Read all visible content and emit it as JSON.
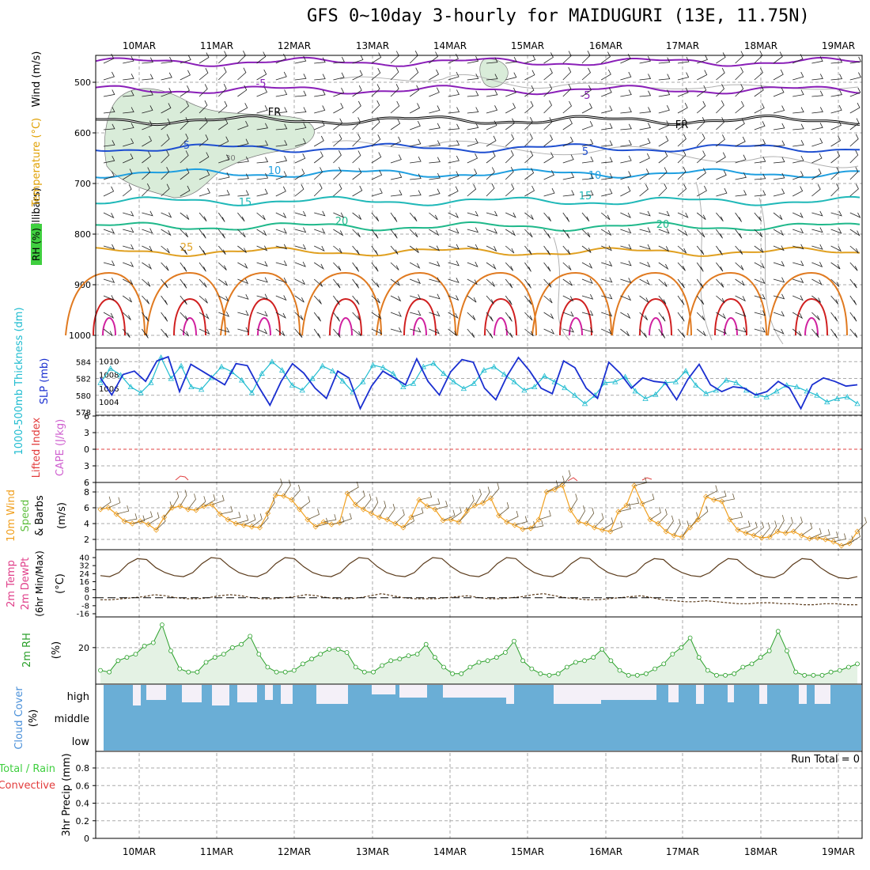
{
  "title": "GFS 0~10day 3-hourly for MAIDUGURI (13E, 11.75N)",
  "colors": {
    "rh_green": "#3fcf3f",
    "temp_red": "#e23b3b",
    "temp_orange": "#e0a000",
    "wind_dark": "#000000",
    "thickness_cyan": "#20bcd0",
    "slp_blue": "#1a2fd0",
    "lifted_red": "#e23b3b",
    "cape_magenta": "#cf5fcf",
    "wind10_orange": "#f0a020",
    "speed_green": "#5fbf3f",
    "rh2m_green": "#2aa02a",
    "cloud_blue": "#4a90d9",
    "cloud_fill": "#6aaed6",
    "precip_green": "#3fcf3f",
    "precip_red": "#e23b3b"
  },
  "chart_data": [
    {
      "type": "heatmap",
      "panel": "upper_air",
      "ylabel_parts": [
        "RH (%)",
        "Temperature (°C)",
        "Wind (m/s)"
      ],
      "ylabel_units": "(millibars)",
      "yticks": [
        500,
        600,
        700,
        800,
        900,
        1000
      ],
      "dates_top": [
        "10MAR",
        "11MAR",
        "12MAR",
        "13MAR",
        "14MAR",
        "15MAR",
        "16MAR",
        "17MAR",
        "18MAR",
        "19MAR"
      ],
      "isotherm_labels": [
        {
          "text": "-5",
          "level": 510,
          "color": "#8a1fb8"
        },
        {
          "text": "-5",
          "level": 525,
          "color": "#8a1fb8"
        },
        {
          "text": "FR",
          "level": 568,
          "color": "#000000"
        },
        {
          "text": "FR",
          "level": 590,
          "color": "#000000"
        },
        {
          "text": "5",
          "level": 628,
          "color": "#1f4fd0"
        },
        {
          "text": "5",
          "level": 633,
          "color": "#1f4fd0"
        },
        {
          "text": "10",
          "level": 678,
          "color": "#1f9fe0"
        },
        {
          "text": "10",
          "level": 682,
          "color": "#1f9fe0"
        },
        {
          "text": "15",
          "level": 740,
          "color": "#1fb8b8"
        },
        {
          "text": "15",
          "level": 730,
          "color": "#1fb8b8"
        },
        {
          "text": "20",
          "level": 790,
          "color": "#1fb88a"
        },
        {
          "text": "20",
          "level": 785,
          "color": "#1fb88a"
        },
        {
          "text": "25",
          "level": 830,
          "color": "#e0a020"
        }
      ],
      "rh_label": "30"
    },
    {
      "type": "line",
      "panel": "thickness_slp",
      "ylabel_left": "1000-500mb Thickness (dm)",
      "ylabel_right": "SLP (mb)",
      "yticks_left": [
        578,
        580,
        582,
        584
      ],
      "yticks_right": [
        1004,
        1006,
        1008,
        1010
      ],
      "series": [
        {
          "name": "Thickness",
          "color": "#20bcd0",
          "values": [
            581.5,
            583.2,
            582.4,
            581.0,
            580.3,
            581.5,
            584.5,
            582.0,
            583.5,
            581.0,
            580.7,
            582.1,
            583.4,
            582.8,
            581.8,
            580.3,
            582.6,
            584.0,
            583.0,
            581.2,
            580.6,
            582.0,
            583.5,
            582.9,
            581.7,
            580.4,
            581.6,
            583.6,
            583.3,
            582.6,
            581.0,
            581.4,
            583.4,
            583.8,
            582.6,
            581.6,
            580.8,
            581.4,
            583.0,
            583.4,
            582.5,
            581.6,
            580.6,
            581.0,
            582.3,
            581.6,
            580.9,
            580.0,
            579.0,
            580.0,
            581.5,
            581.6,
            582.2,
            580.5,
            579.6,
            580.1,
            581.5,
            581.6,
            582.9,
            581.2,
            580.2,
            580.6,
            581.8,
            581.5,
            580.6,
            580.0,
            579.8,
            580.5,
            581.2,
            581.0,
            580.5,
            580.0,
            579.2,
            579.6,
            579.8,
            579.0
          ]
        },
        {
          "name": "SLP",
          "color": "#1a2fd0",
          "values": [
            1007.5,
            1005.0,
            1008.0,
            1008.5,
            1007.0,
            1010.0,
            1010.6,
            1005.5,
            1009.5,
            1008.5,
            1007.5,
            1006.5,
            1009.6,
            1009.3,
            1006.2,
            1003.5,
            1007.0,
            1009.6,
            1008.2,
            1006.0,
            1004.5,
            1008.5,
            1007.5,
            1003.0,
            1006.3,
            1008.5,
            1007.5,
            1006.5,
            1010.3,
            1007.0,
            1005.0,
            1008.4,
            1010.2,
            1009.8,
            1006.0,
            1004.3,
            1007.8,
            1010.5,
            1008.5,
            1006.0,
            1005.2,
            1010.0,
            1009.0,
            1006.0,
            1004.5,
            1009.8,
            1008.2,
            1006.0,
            1007.5,
            1007.0,
            1006.8,
            1004.3,
            1007.3,
            1009.5,
            1006.5,
            1005.5,
            1006.2,
            1006.0,
            1005.0,
            1005.5,
            1007.0,
            1006.0,
            1003.0,
            1006.5,
            1007.5,
            1007.0,
            1006.3,
            1006.5
          ]
        }
      ]
    },
    {
      "type": "line",
      "panel": "lifted_cape",
      "ylabel_left": "Lifted Index",
      "ylabel_right": "CAPE (J/kg)",
      "yticks": [
        -6,
        -3,
        0,
        3,
        6
      ],
      "ytick_labels": [
        "6",
        "3",
        "0",
        "3",
        "6"
      ],
      "series": [
        {
          "name": "Lifted Index",
          "color": "#e23b3b",
          "values": []
        }
      ]
    },
    {
      "type": "line",
      "panel": "wind10m",
      "ylabel_parts": [
        "10m Wind",
        "Speed",
        "& Barbs"
      ],
      "ylabel_units": "(m/s)",
      "yticks": [
        2,
        4,
        6,
        8
      ],
      "series": [
        {
          "name": "Speed",
          "color": "#f0a020",
          "values": [
            5.8,
            6.0,
            5.2,
            4.3,
            4.0,
            4.3,
            3.9,
            3.2,
            4.8,
            6.0,
            6.2,
            5.8,
            5.7,
            6.2,
            6.4,
            5.2,
            4.5,
            4.0,
            3.8,
            3.6,
            3.5,
            5.3,
            7.6,
            7.5,
            7.0,
            5.8,
            4.5,
            3.6,
            4.2,
            3.9,
            4.1,
            7.8,
            6.4,
            5.8,
            5.3,
            4.8,
            4.5,
            4.0,
            3.5,
            4.8,
            7.0,
            6.2,
            5.8,
            4.4,
            4.5,
            4.2,
            5.6,
            6.3,
            6.6,
            7.2,
            5.0,
            4.2,
            3.8,
            3.3,
            3.4,
            4.5,
            8.0,
            8.3,
            8.8,
            5.7,
            4.2,
            4.0,
            3.5,
            3.2,
            3.0,
            5.5,
            6.3,
            8.8,
            6.5,
            4.5,
            4.0,
            3.0,
            2.5,
            2.3,
            3.5,
            4.5,
            7.4,
            7.0,
            6.8,
            4.5,
            3.2,
            2.8,
            2.5,
            2.2,
            2.3,
            3.0,
            2.8,
            3.0,
            2.5,
            2.1,
            2.2,
            2.0,
            1.7,
            1.2,
            1.5,
            3.0
          ]
        }
      ]
    },
    {
      "type": "area",
      "panel": "temp2m",
      "ylabel_parts": [
        "2m Temp",
        "2m DewPt",
        "(6hr Min/Max)"
      ],
      "ylabel_units": "(°C)",
      "yticks": [
        -16,
        -8,
        0,
        8,
        16,
        24,
        32,
        40
      ],
      "series": [
        {
          "name": "2m Temp",
          "color": "#5a3a1a",
          "values": [
            22,
            21,
            25,
            34,
            39,
            38,
            30,
            25,
            22,
            21,
            25,
            34,
            40,
            39,
            31,
            25,
            22,
            21,
            25,
            34,
            40,
            39,
            31,
            25,
            22,
            21,
            25,
            34,
            40,
            39,
            31,
            25,
            22,
            21,
            25,
            34,
            40,
            39,
            31,
            25,
            22,
            21,
            25,
            34,
            40,
            39,
            31,
            25,
            22,
            21,
            25,
            34,
            40,
            39,
            31,
            25,
            22,
            21,
            25,
            34,
            39,
            38,
            30,
            25,
            22,
            21,
            25,
            33,
            39,
            38,
            30,
            24,
            21,
            20,
            24,
            33,
            39,
            38,
            30,
            24,
            20,
            19,
            21
          ]
        },
        {
          "name": "2m DewPt",
          "color": "#5a3a1a",
          "values": [
            -2,
            -2,
            -1,
            0,
            1,
            3,
            2,
            0,
            -1,
            -1,
            0,
            2,
            3,
            2,
            0,
            -1,
            -1,
            0,
            1,
            3,
            2,
            0,
            -1,
            -1,
            0,
            2,
            4,
            2,
            0,
            -1,
            -1,
            -1,
            0,
            1,
            2,
            0,
            -1,
            -1,
            0,
            1,
            3,
            4,
            2,
            0,
            -1,
            -2,
            -2,
            -1,
            0,
            1,
            2,
            0,
            -2,
            -3,
            -4,
            -4,
            -3,
            -4,
            -5,
            -6,
            -6,
            -5,
            -5,
            -6,
            -6,
            -7,
            -7,
            -6,
            -6,
            -7,
            -7
          ]
        }
      ]
    },
    {
      "type": "area",
      "panel": "rh2m",
      "ylabel": "2m RH",
      "ylabel_units": "(%)",
      "yticks": [
        20
      ],
      "series": [
        {
          "name": "2m RH",
          "color": "#2aa02a",
          "values": [
            6,
            5,
            12,
            14,
            16,
            21,
            23,
            34,
            18,
            7,
            5,
            5,
            11,
            14,
            16,
            20,
            22,
            27,
            16,
            8,
            5,
            5,
            6,
            10,
            13,
            16,
            19,
            19,
            17,
            8,
            5,
            5,
            9,
            12,
            13,
            15,
            16,
            22,
            14,
            8,
            4,
            4,
            8,
            11,
            12,
            14,
            17,
            24,
            12,
            7,
            4,
            3,
            4,
            8,
            11,
            12,
            14,
            19,
            12,
            6,
            3,
            3,
            4,
            7,
            10,
            16,
            20,
            26,
            14,
            6,
            3,
            3,
            4,
            8,
            10,
            14,
            18,
            30,
            18,
            5,
            3,
            3,
            3,
            5,
            6,
            8,
            10
          ]
        }
      ]
    },
    {
      "type": "bar",
      "panel": "cloud",
      "ylabel": "Cloud Cover",
      "ylabel_units": "(%)",
      "yticks_text": [
        "high",
        "middle",
        "low"
      ]
    },
    {
      "type": "bar",
      "panel": "precip",
      "ylabel_parts": [
        "Total / Rain",
        "Convective"
      ],
      "ylabel": "3hr Precip (mm)",
      "yticks": [
        0,
        0.2,
        0.4,
        0.6,
        0.8
      ],
      "run_total": "Run Total = 0",
      "dates_bottom": [
        "10MAR",
        "11MAR",
        "12MAR",
        "13MAR",
        "14MAR",
        "15MAR",
        "16MAR",
        "17MAR",
        "18MAR",
        "19MAR"
      ]
    }
  ]
}
